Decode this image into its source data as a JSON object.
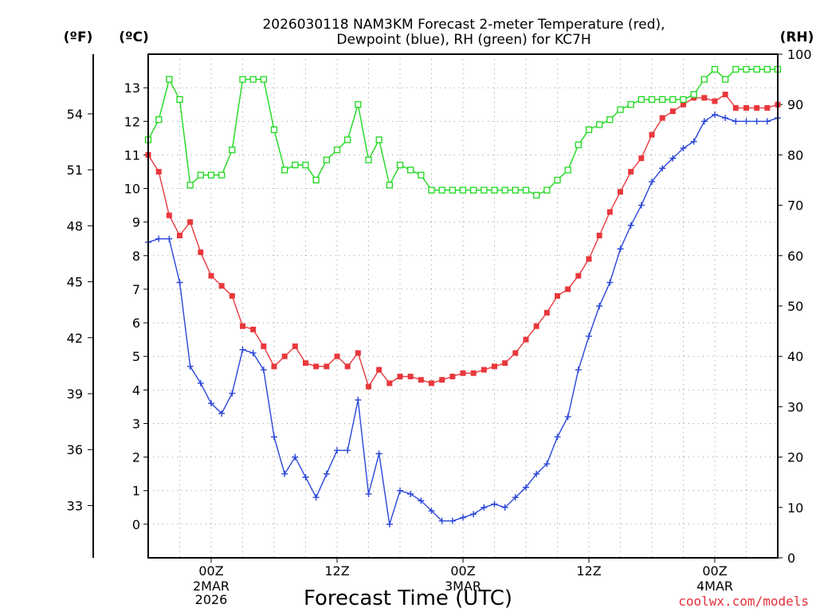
{
  "chart_data": {
    "type": "line",
    "title_lines": [
      "2026030118 NAM3KM Forecast 2-meter Temperature (red),",
      "Dewpoint (blue), RH (green) for KC7H"
    ],
    "xlabel": "Forecast Time (UTC)",
    "credit": "coolwx.com/models",
    "units": {
      "fahrenheit": "(ºF)",
      "celsius": "(ºC)",
      "rh": "(RH)"
    },
    "x_unit": "forecast hours from 2026-03-01 18Z",
    "x_range": [
      0,
      60
    ],
    "celsius_range": [
      -1,
      14
    ],
    "rh_range": [
      0,
      100
    ],
    "celsius_ticks": [
      "0",
      "1",
      "2",
      "3",
      "4",
      "5",
      "6",
      "7",
      "8",
      "9",
      "10",
      "11",
      "12",
      "13"
    ],
    "fahrenheit_ticks": [
      "33",
      "36",
      "39",
      "42",
      "45",
      "48",
      "51",
      "54"
    ],
    "rh_ticks": [
      "0",
      "10",
      "20",
      "30",
      "40",
      "50",
      "60",
      "70",
      "80",
      "90",
      "100"
    ],
    "x_ticks": [
      {
        "hour": 6,
        "label": "00Z",
        "sub": [
          "2MAR",
          "2026"
        ]
      },
      {
        "hour": 18,
        "label": "12Z",
        "sub": []
      },
      {
        "hour": 30,
        "label": "00Z",
        "sub": [
          "3MAR"
        ]
      },
      {
        "hour": 42,
        "label": "12Z",
        "sub": []
      },
      {
        "hour": 54,
        "label": "00Z",
        "sub": [
          "4MAR"
        ]
      }
    ],
    "x": [
      0,
      1,
      2,
      3,
      4,
      5,
      6,
      7,
      8,
      9,
      10,
      11,
      12,
      13,
      14,
      15,
      16,
      17,
      18,
      19,
      20,
      21,
      22,
      23,
      24,
      25,
      26,
      27,
      28,
      29,
      30,
      31,
      32,
      33,
      34,
      35,
      36,
      37,
      38,
      39,
      40,
      41,
      42,
      43,
      44,
      45,
      46,
      47,
      48,
      49,
      50,
      51,
      52,
      53,
      54,
      55,
      56,
      57,
      58,
      59,
      60
    ],
    "series": [
      {
        "name": "2-meter Temperature",
        "axis": "celsius",
        "color": "#e8383c",
        "marker": "filled-square",
        "values": [
          11.0,
          10.5,
          9.2,
          8.6,
          9.0,
          8.1,
          7.4,
          7.1,
          6.8,
          5.9,
          5.8,
          5.3,
          4.7,
          5.0,
          5.3,
          4.8,
          4.7,
          4.7,
          5.0,
          4.7,
          5.1,
          4.1,
          4.6,
          4.2,
          4.4,
          4.4,
          4.3,
          4.2,
          4.3,
          4.4,
          4.5,
          4.5,
          4.6,
          4.7,
          4.8,
          5.1,
          5.5,
          5.9,
          6.3,
          6.8,
          7.0,
          7.4,
          7.9,
          8.6,
          9.3,
          9.9,
          10.5,
          10.9,
          11.6,
          12.1,
          12.3,
          12.5,
          12.7,
          12.7,
          12.6,
          12.8,
          12.4,
          12.4,
          12.4,
          12.4,
          12.5
        ]
      },
      {
        "name": "Dewpoint",
        "axis": "celsius",
        "color": "#2a46d8",
        "marker": "plus",
        "values": [
          8.4,
          8.5,
          8.5,
          7.2,
          4.7,
          4.2,
          3.6,
          3.3,
          3.9,
          5.2,
          5.1,
          4.6,
          2.6,
          1.5,
          2.0,
          1.4,
          0.8,
          1.5,
          2.2,
          2.2,
          3.7,
          0.9,
          2.1,
          0.0,
          1.0,
          0.9,
          0.7,
          0.4,
          0.1,
          0.1,
          0.2,
          0.3,
          0.5,
          0.6,
          0.5,
          0.8,
          1.1,
          1.5,
          1.8,
          2.6,
          3.2,
          4.6,
          5.6,
          6.5,
          7.2,
          8.2,
          8.9,
          9.5,
          10.2,
          10.6,
          10.9,
          11.2,
          11.4,
          12.0,
          12.2,
          12.1,
          12.0,
          12.0,
          12.0,
          12.0,
          12.1
        ]
      },
      {
        "name": "RH",
        "axis": "rh",
        "color": "#1ed81e",
        "marker": "open-square",
        "values": [
          83,
          87,
          95,
          91,
          74,
          76,
          76,
          76,
          81,
          95,
          95,
          95,
          85,
          77,
          78,
          78,
          75,
          79,
          81,
          83,
          90,
          79,
          83,
          74,
          78,
          77,
          76,
          73,
          73,
          73,
          73,
          73,
          73,
          73,
          73,
          73,
          73,
          72,
          73,
          75,
          77,
          82,
          85,
          86,
          87,
          89,
          90,
          91,
          91,
          91,
          91,
          91,
          92,
          95,
          97,
          95,
          97,
          97,
          97,
          97,
          97
        ]
      }
    ]
  }
}
